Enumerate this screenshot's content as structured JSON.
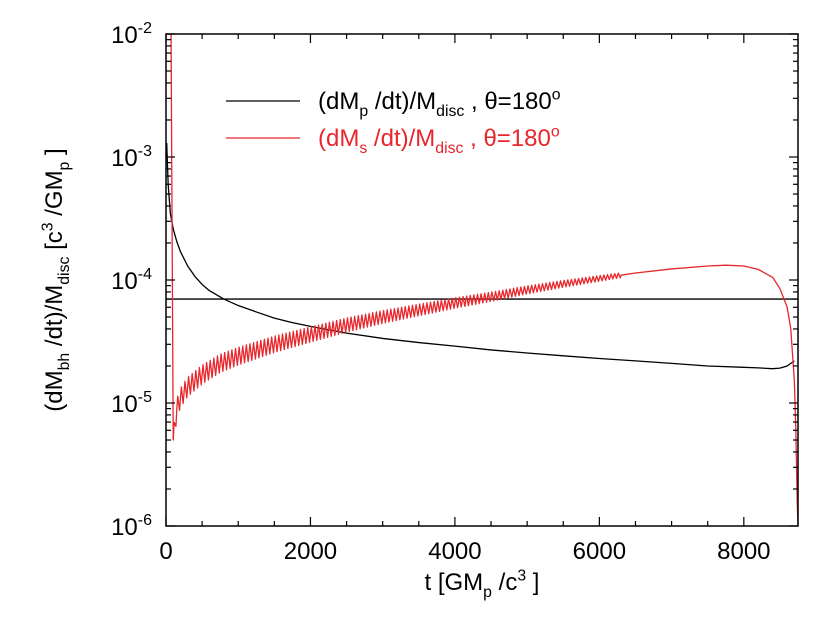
{
  "chart_data": {
    "type": "line",
    "title": "",
    "xlabel": "t [GM_p /c^3 ]",
    "ylabel": "(dM_bh /dt)/M_disc [c^3 /GM_p ]",
    "xlim": [
      0,
      8750
    ],
    "ylim": [
      1e-06,
      0.01
    ],
    "yscale": "log",
    "grid": false,
    "legend_position": "top-center",
    "x_ticks": [
      0,
      2000,
      4000,
      6000,
      8000
    ],
    "x_tick_labels": [
      "0",
      "2000",
      "4000",
      "6000",
      "8000"
    ],
    "y_ticks": [
      1e-06,
      1e-05,
      0.0001,
      0.001,
      0.01
    ],
    "y_tick_labels": [
      {
        "base": "10",
        "exp": "-6"
      },
      {
        "base": "10",
        "exp": "-5"
      },
      {
        "base": "10",
        "exp": "-4"
      },
      {
        "base": "10",
        "exp": "-3"
      },
      {
        "base": "10",
        "exp": "-2"
      }
    ],
    "xlabel_parts": [
      {
        "t": "t [GM",
        "s": ""
      },
      {
        "t": "p",
        "s": "sub"
      },
      {
        "t": " /c",
        "s": ""
      },
      {
        "t": "3",
        "s": "sup"
      },
      {
        "t": " ]",
        "s": ""
      }
    ],
    "ylabel_parts": [
      {
        "t": "(dM",
        "s": ""
      },
      {
        "t": "bh",
        "s": "sub"
      },
      {
        "t": " /dt)/M",
        "s": ""
      },
      {
        "t": "disc",
        "s": "sub"
      },
      {
        "t": " [c",
        "s": ""
      },
      {
        "t": "3",
        "s": "sup"
      },
      {
        "t": " /GM",
        "s": ""
      },
      {
        "t": "p",
        "s": "sub"
      },
      {
        "t": " ]",
        "s": ""
      }
    ],
    "reference_line": {
      "y": 7e-05,
      "color": "#000000"
    },
    "series": [
      {
        "name": "(dM_p /dt)/M_disc , θ=180^o",
        "legend_parts": [
          {
            "t": "(dM",
            "s": ""
          },
          {
            "t": "p",
            "s": "sub"
          },
          {
            "t": " /dt)/M",
            "s": ""
          },
          {
            "t": "disc",
            "s": "sub"
          },
          {
            "t": " , θ=180",
            "s": ""
          },
          {
            "t": "o",
            "s": "sup"
          }
        ],
        "color": "#000000",
        "x": [
          10,
          30,
          60,
          100,
          150,
          200,
          300,
          400,
          500,
          600,
          800,
          1000,
          1250,
          1500,
          1750,
          2000,
          2500,
          3000,
          3500,
          4000,
          4500,
          5000,
          5500,
          6000,
          6500,
          7000,
          7500,
          8000,
          8200,
          8400,
          8500,
          8600,
          8650,
          8700
        ],
        "y": [
          0.0013,
          0.0006,
          0.00035,
          0.00026,
          0.000205,
          0.00017,
          0.00013,
          0.000107,
          9.2e-05,
          8.2e-05,
          7e-05,
          6.2e-05,
          5.5e-05,
          4.9e-05,
          4.5e-05,
          4.2e-05,
          3.7e-05,
          3.35e-05,
          3.1e-05,
          2.9e-05,
          2.7e-05,
          2.55e-05,
          2.42e-05,
          2.3e-05,
          2.2e-05,
          2.1e-05,
          2e-05,
          1.95e-05,
          1.93e-05,
          1.9e-05,
          1.92e-05,
          2e-05,
          2.1e-05,
          2.2e-05
        ]
      },
      {
        "name": "(dM_s /dt)/M_disc , θ=180^o",
        "legend_parts": [
          {
            "t": "(dM",
            "s": ""
          },
          {
            "t": "s",
            "s": "sub"
          },
          {
            "t": " /dt)/M",
            "s": ""
          },
          {
            "t": "disc",
            "s": "sub"
          },
          {
            "t": " , θ=180",
            "s": ""
          },
          {
            "t": "o",
            "s": "sup"
          }
        ],
        "color": "#e8262b",
        "x": [
          0,
          10,
          30,
          50,
          70,
          100,
          150,
          200,
          300,
          500,
          750,
          1000,
          1500,
          2000,
          2500,
          3000,
          3500,
          4000,
          4500,
          5000,
          5500,
          6000,
          6500,
          7000,
          7500,
          7750,
          8000,
          8200,
          8400,
          8500,
          8600,
          8650,
          8700,
          8720,
          8740,
          8750
        ],
        "y": [
          0.01,
          0.01,
          0.01,
          0.01,
          0.01,
          5e-06,
          9e-06,
          1.1e-05,
          1.35e-05,
          1.7e-05,
          2.1e-05,
          2.4e-05,
          3e-05,
          3.6e-05,
          4.3e-05,
          5e-05,
          5.7e-05,
          6.5e-05,
          7.3e-05,
          8.3e-05,
          9.3e-05,
          0.000103,
          0.000114,
          0.000123,
          0.00013,
          0.000132,
          0.00013,
          0.000122,
          0.000105,
          8.5e-05,
          6e-05,
          4e-05,
          1.5e-05,
          6e-06,
          1.5e-06,
          1e-06
        ],
        "oscillation": {
          "x_start": 100,
          "x_end": 6300,
          "period": 50,
          "amplitude_dex_start": 0.08,
          "amplitude_dex_end": 0.02
        }
      }
    ]
  }
}
